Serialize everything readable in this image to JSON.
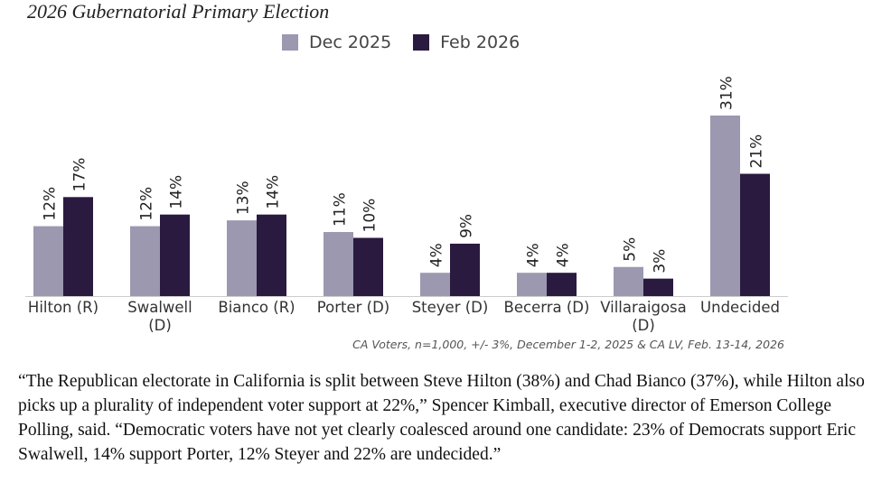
{
  "chart_data": {
    "type": "bar",
    "title": "2026 Gubernatorial Primary Election",
    "categories": [
      [
        "Hilton (R)"
      ],
      [
        "Swalwell",
        "(D)"
      ],
      [
        "Bianco (R)"
      ],
      [
        "Porter (D)"
      ],
      [
        "Steyer (D)"
      ],
      [
        "Becerra (D)"
      ],
      [
        "Villaraigosa",
        "(D)"
      ],
      [
        "Undecided"
      ]
    ],
    "series": [
      {
        "name": "Dec 2025",
        "color": "#9b98b0",
        "values": [
          12,
          12,
          13,
          11,
          4,
          4,
          5,
          31
        ],
        "labels": [
          "12%",
          "12%",
          "13%",
          "11%",
          "4%",
          "4%",
          "5%",
          "31%"
        ]
      },
      {
        "name": "Feb 2026",
        "color": "#2a1a40",
        "values": [
          17,
          14,
          14,
          10,
          9,
          4,
          3,
          21
        ],
        "labels": [
          "17%",
          "14%",
          "14%",
          "10%",
          "9%",
          "4%",
          "3%",
          "21%"
        ]
      }
    ],
    "ylim": [
      0,
      31
    ],
    "grid": false,
    "legend": "top",
    "source": "CA Voters, n=1,000, +/- 3%, December 1-2, 2025 & CA LV, Feb. 13-14, 2026"
  },
  "quote": "“The Republican electorate in California is split between Steve Hilton (38%) and Chad Bianco (37%), while Hilton also picks up a plurality of independent voter support at 22%,” Spencer Kimball, executive director of Emerson College Polling, said. “Democratic voters have not yet clearly coalesced around one candidate: 23% of Democrats support Eric Swalwell, 14% support Porter, 12% Steyer and 22% are undecided.”"
}
